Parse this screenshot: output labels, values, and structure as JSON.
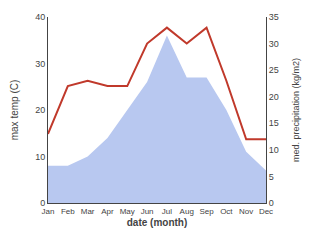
{
  "chart_data": {
    "type": "line",
    "categories": [
      "Jan",
      "Feb",
      "Mar",
      "Apr",
      "May",
      "Jun",
      "Jul",
      "Aug",
      "Sep",
      "Oct",
      "Nov",
      "Dec"
    ],
    "series": [
      {
        "type": "area",
        "color": "#b8c8f0",
        "values": [
          8,
          8,
          10,
          14,
          20,
          26,
          36,
          27,
          27,
          20,
          11,
          7
        ]
      },
      {
        "type": "line",
        "color": "#c0392b",
        "axis": "y2",
        "values": [
          13,
          22,
          23,
          22,
          22,
          30,
          33,
          30,
          33,
          23,
          12,
          12
        ]
      }
    ],
    "xlabel": "date (month)",
    "ylabel": "max temp (C)",
    "y2label": "med. precipitation (kg/m2)",
    "ylim": [
      0,
      40
    ],
    "yticks": [
      0,
      10,
      20,
      30,
      40
    ],
    "y2lim": [
      0,
      35
    ],
    "y2ticks": [
      0,
      5,
      10,
      15,
      20,
      25,
      30,
      35
    ],
    "grid": false
  }
}
